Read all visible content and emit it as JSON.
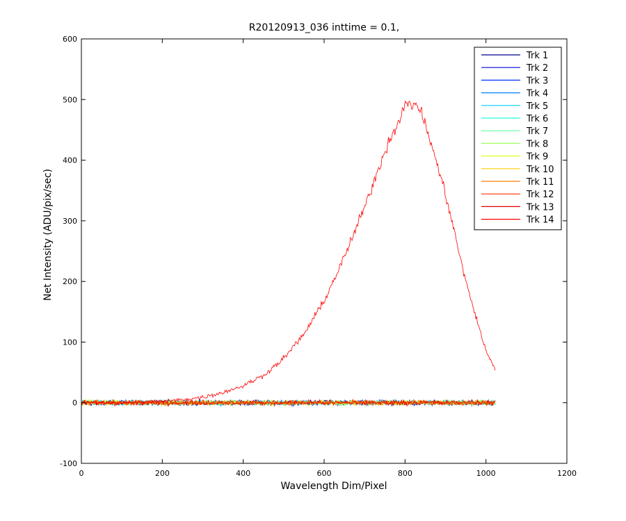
{
  "chart_data": {
    "type": "line",
    "title": "R20120913_036 inttime = 0.1,",
    "xlabel": "Wavelength Dim/Pixel",
    "ylabel": "Net Intensity (ADU/pix/sec)",
    "xlim": [
      0,
      1200
    ],
    "ylim": [
      -100,
      600
    ],
    "xticks": [
      0,
      200,
      400,
      600,
      800,
      1000,
      1200
    ],
    "yticks": [
      -100,
      0,
      100,
      200,
      300,
      400,
      500,
      600
    ],
    "grid": false,
    "legend_position": "top-right",
    "x_range_of_data": [
      1,
      1024
    ],
    "noise_amplitude_approx": 6,
    "series": [
      {
        "name": "Trk 1",
        "color": "#00008F",
        "baseline": 0
      },
      {
        "name": "Trk 2",
        "color": "#0000DF",
        "baseline": 0
      },
      {
        "name": "Trk 3",
        "color": "#0030FF",
        "baseline": 0
      },
      {
        "name": "Trk 4",
        "color": "#0080FF",
        "baseline": 0
      },
      {
        "name": "Trk 5",
        "color": "#00CFFF",
        "baseline": 0
      },
      {
        "name": "Trk 6",
        "color": "#20FFDF",
        "baseline": 0
      },
      {
        "name": "Trk 7",
        "color": "#60FF9F",
        "baseline": 0
      },
      {
        "name": "Trk 8",
        "color": "#9FFF60",
        "baseline": 0
      },
      {
        "name": "Trk 9",
        "color": "#DFFF20",
        "baseline": 0
      },
      {
        "name": "Trk 10",
        "color": "#FFCF00",
        "baseline": 0
      },
      {
        "name": "Trk 11",
        "color": "#FF8000",
        "baseline": 0
      },
      {
        "name": "Trk 12",
        "color": "#FF3000",
        "baseline": 0
      },
      {
        "name": "Trk 13",
        "color": "#DF0000",
        "baseline": 0
      },
      {
        "name": "Trk 14",
        "color": "#FF0000",
        "profile_x": [
          1,
          100,
          200,
          250,
          300,
          350,
          400,
          450,
          500,
          550,
          600,
          650,
          700,
          750,
          800,
          830,
          850,
          900,
          950,
          1000,
          1024
        ],
        "profile_y": [
          0,
          0,
          2,
          5,
          9,
          17,
          28,
          45,
          73,
          113,
          168,
          240,
          322,
          415,
          490,
          493,
          460,
          345,
          200,
          85,
          53
        ]
      }
    ]
  }
}
